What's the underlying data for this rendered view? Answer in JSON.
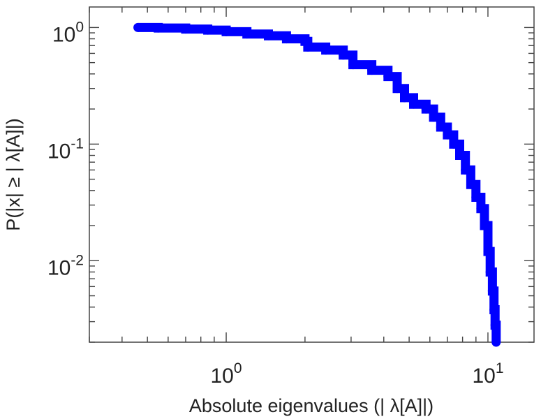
{
  "chart_data": {
    "type": "line",
    "title": "",
    "xlabel": "Absolute eigenvalues (|     λ[A]|)",
    "ylabel": "P(|x|  ≥ | λ[A]|)",
    "x_scale": "log",
    "y_scale": "log",
    "xlim": [
      0.3,
      15
    ],
    "ylim": [
      0.002,
      1.5
    ],
    "grid": false,
    "x_ticks": [
      {
        "value": 1,
        "base": "10",
        "exp": "0"
      },
      {
        "value": 10,
        "base": "10",
        "exp": "1"
      }
    ],
    "y_ticks": [
      {
        "value": 1,
        "base": "10",
        "exp": "0"
      },
      {
        "value": 0.1,
        "base": "10",
        "exp": "-1"
      },
      {
        "value": 0.01,
        "base": "10",
        "exp": "-2"
      }
    ],
    "series": [
      {
        "color": "#0000ff",
        "x": [
          0.46,
          0.55,
          0.7,
          0.85,
          1.0,
          1.2,
          1.45,
          1.7,
          2.0,
          2.05,
          2.4,
          2.8,
          3.05,
          3.6,
          4.15,
          4.5,
          4.8,
          5.2,
          5.8,
          6.2,
          6.6,
          7.0,
          7.4,
          7.8,
          8.2,
          8.6,
          9.0,
          9.4,
          9.7,
          10.0,
          10.2,
          10.4,
          10.55,
          10.65,
          10.75
        ],
        "y": [
          1.0,
          0.99,
          0.97,
          0.95,
          0.92,
          0.88,
          0.85,
          0.8,
          0.76,
          0.68,
          0.64,
          0.58,
          0.48,
          0.43,
          0.38,
          0.3,
          0.25,
          0.22,
          0.2,
          0.17,
          0.14,
          0.12,
          0.1,
          0.08,
          0.06,
          0.045,
          0.035,
          0.028,
          0.02,
          0.012,
          0.008,
          0.0055,
          0.0038,
          0.0028,
          0.002
        ]
      }
    ]
  }
}
